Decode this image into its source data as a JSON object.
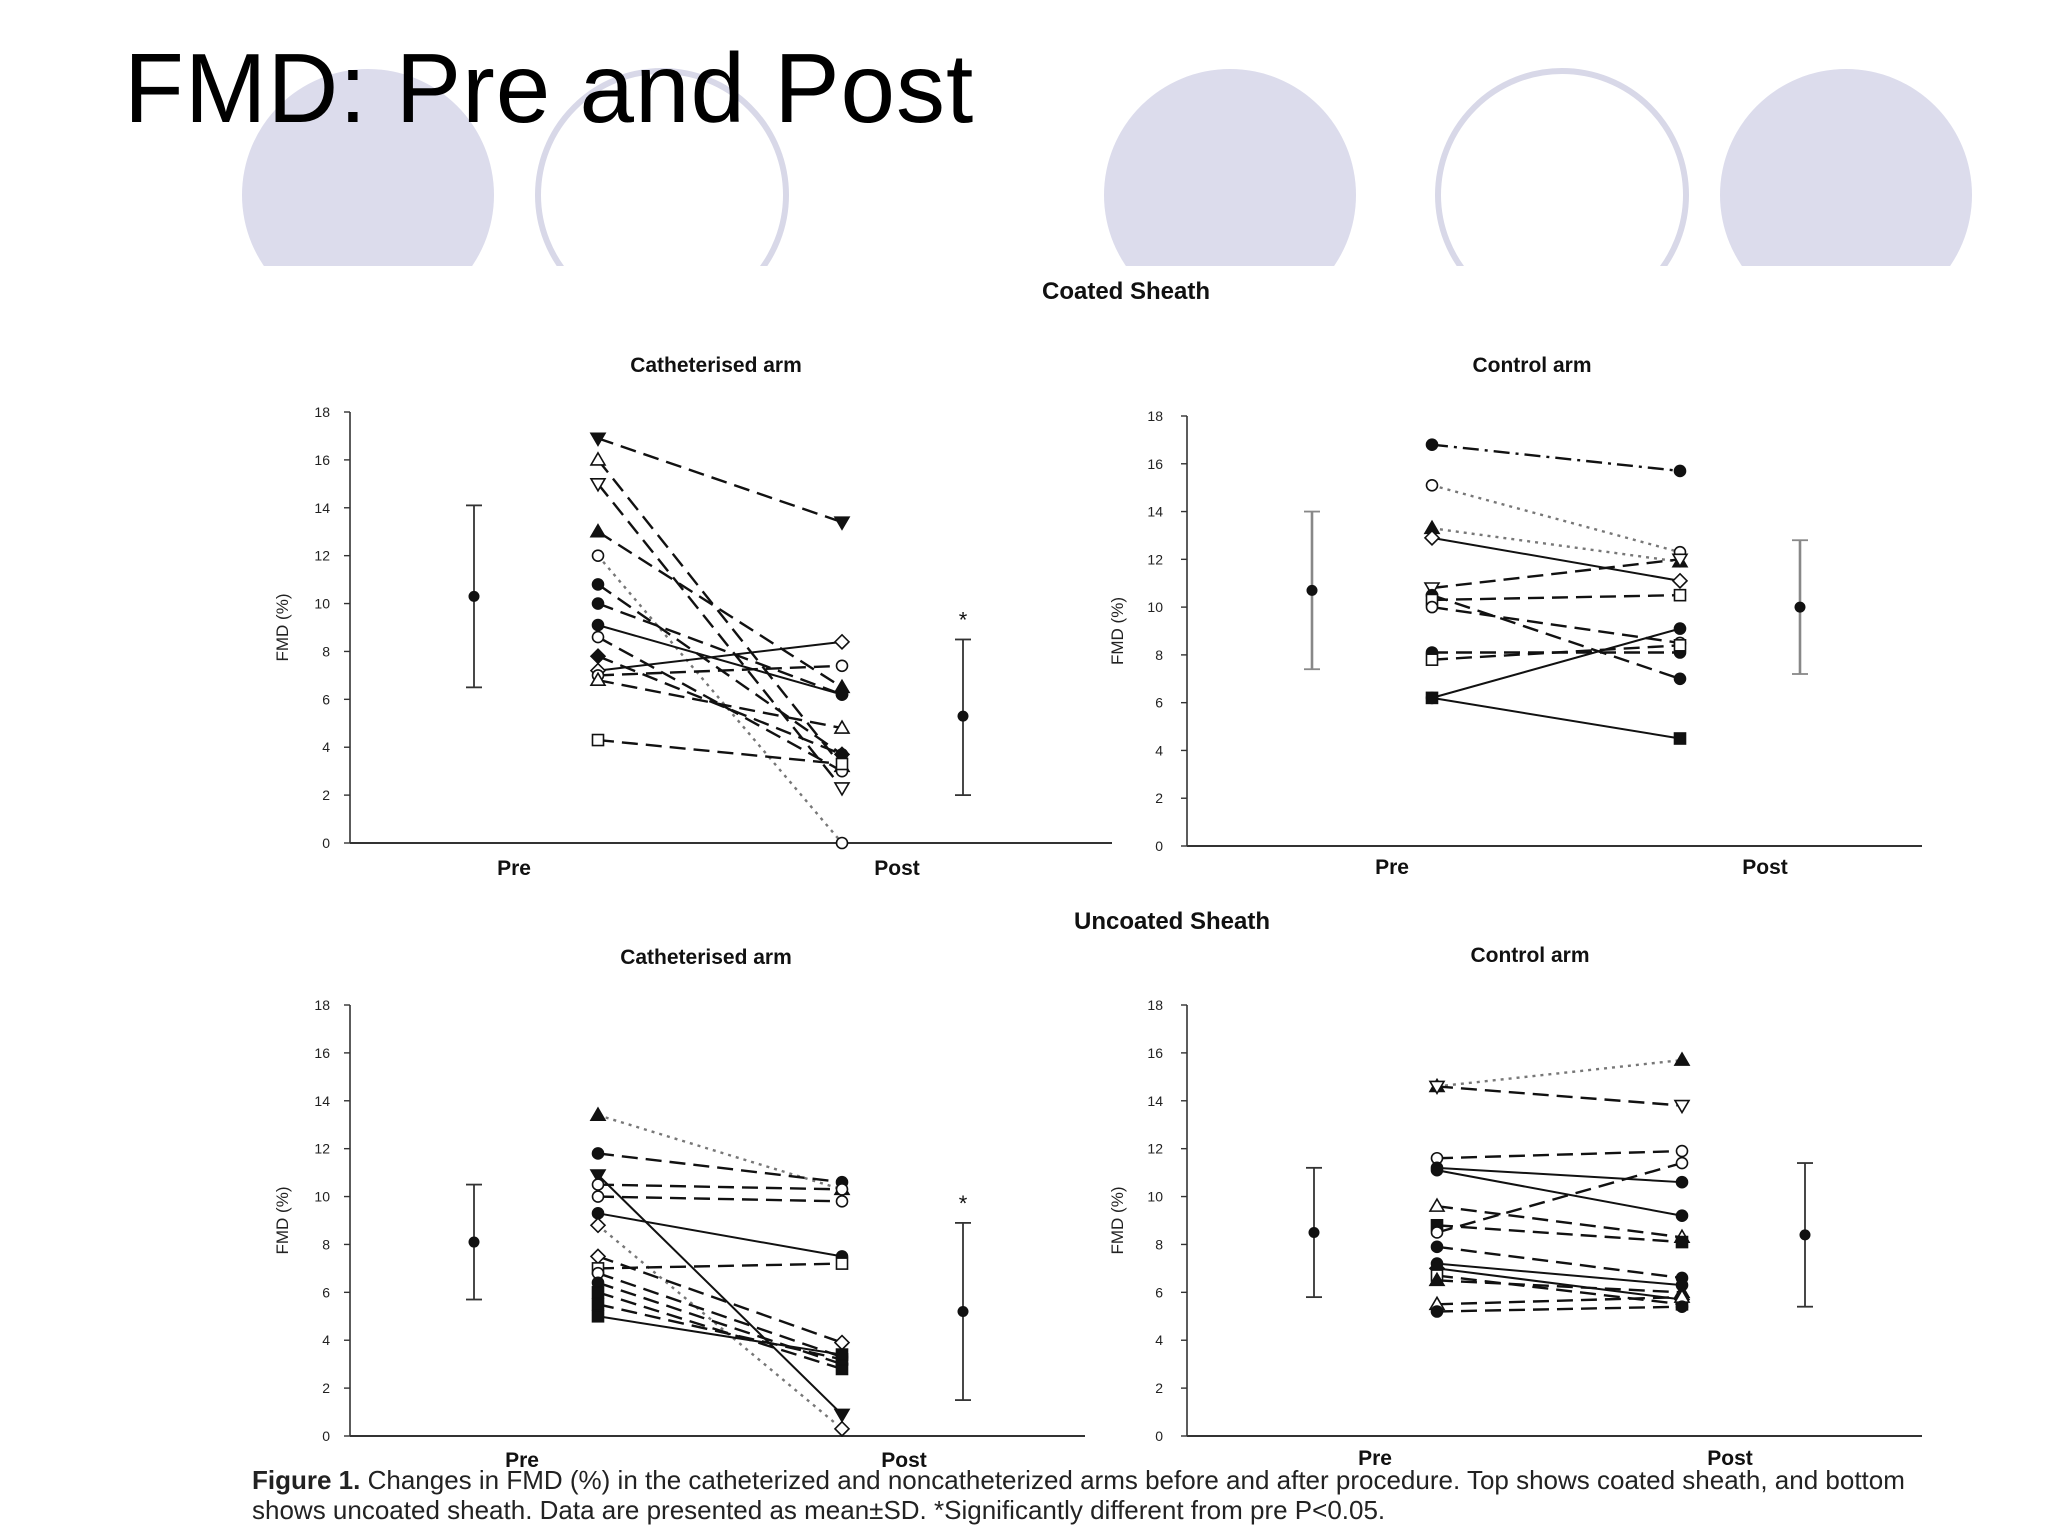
{
  "slide": {
    "title": "FMD: Pre and Post"
  },
  "colors": {
    "decor_fill": "#dcdcec",
    "decor_ring": "#d8d8e8",
    "ink": "#111111",
    "grey_bar": "#888888"
  },
  "sections": {
    "coated": "Coated Sheath",
    "uncoated": "Uncoated Sheath"
  },
  "caption": {
    "label": "Figure 1.",
    "text": "Changes in FMD (%) in the catheterized and noncatheterized arms before and after procedure. Top shows coated sheath, and bottom shows uncoated sheath. Data are presented as mean±SD. *Significantly different from pre P<0.05."
  },
  "chart_data": [
    {
      "type": "line",
      "section": "Coated Sheath",
      "title": "Catheterised arm",
      "xlabel": "",
      "ylabel": "FMD (%)",
      "categories": [
        "Pre",
        "Post"
      ],
      "ylim": [
        0,
        18
      ],
      "yticks": [
        0,
        2,
        4,
        6,
        8,
        10,
        12,
        14,
        16,
        18
      ],
      "significance_mark": "*",
      "mean_sd": [
        {
          "label": "Pre",
          "mean": 10.3,
          "low": 6.5,
          "high": 14.1
        },
        {
          "label": "Post",
          "mean": 5.3,
          "low": 2.0,
          "high": 8.5
        }
      ],
      "subjects": [
        {
          "pre": 16.9,
          "post": 13.4,
          "marker": "tri-down-filled",
          "dash": "dashed"
        },
        {
          "pre": 16.0,
          "post": 3.2,
          "marker": "tri-up-open",
          "dash": "dashed"
        },
        {
          "pre": 15.0,
          "post": 2.3,
          "marker": "tri-down-open",
          "dash": "dashed"
        },
        {
          "pre": 13.0,
          "post": 6.5,
          "marker": "tri-up-filled",
          "dash": "dashed"
        },
        {
          "pre": 12.0,
          "post": 0.0,
          "marker": "circle-open",
          "dash": "dotted"
        },
        {
          "pre": 10.8,
          "post": 3.7,
          "marker": "circle-filled",
          "dash": "dashed"
        },
        {
          "pre": 10.0,
          "post": 6.2,
          "marker": "circle-filled",
          "dash": "dashed"
        },
        {
          "pre": 9.1,
          "post": 6.2,
          "marker": "circle-filled",
          "dash": "solid"
        },
        {
          "pre": 8.6,
          "post": 3.0,
          "marker": "circle-open",
          "dash": "dashed"
        },
        {
          "pre": 7.8,
          "post": 3.7,
          "marker": "diamond-filled",
          "dash": "dashed"
        },
        {
          "pre": 7.2,
          "post": 8.4,
          "marker": "diamond-open",
          "dash": "solid"
        },
        {
          "pre": 7.0,
          "post": 7.4,
          "marker": "circle-open",
          "dash": "dashed"
        },
        {
          "pre": 6.8,
          "post": 4.8,
          "marker": "tri-up-open",
          "dash": "dashed"
        },
        {
          "pre": 4.3,
          "post": 3.3,
          "marker": "square-open",
          "dash": "dashed"
        }
      ]
    },
    {
      "type": "line",
      "section": "Coated Sheath",
      "title": "Control arm",
      "xlabel": "",
      "ylabel": "FMD (%)",
      "categories": [
        "Pre",
        "Post"
      ],
      "ylim": [
        0,
        18
      ],
      "yticks": [
        0,
        2,
        4,
        6,
        8,
        10,
        12,
        14,
        16,
        18
      ],
      "significance_mark": "",
      "mean_sd": [
        {
          "label": "Pre",
          "mean": 10.7,
          "low": 7.4,
          "high": 14.0
        },
        {
          "label": "Post",
          "mean": 10.0,
          "low": 7.2,
          "high": 12.8
        }
      ],
      "subjects": [
        {
          "pre": 16.8,
          "post": 15.7,
          "marker": "circle-filled",
          "dash": "dashdot"
        },
        {
          "pre": 15.1,
          "post": 12.3,
          "marker": "circle-open",
          "dash": "dotted"
        },
        {
          "pre": 13.3,
          "post": 11.9,
          "marker": "tri-up-filled",
          "dash": "dotted"
        },
        {
          "pre": 12.9,
          "post": 11.1,
          "marker": "diamond-open",
          "dash": "solid"
        },
        {
          "pre": 10.8,
          "post": 12.0,
          "marker": "tri-down-open",
          "dash": "dashed"
        },
        {
          "pre": 10.5,
          "post": 7.0,
          "marker": "circle-filled",
          "dash": "dashed"
        },
        {
          "pre": 10.3,
          "post": 10.5,
          "marker": "square-open",
          "dash": "dashed"
        },
        {
          "pre": 10.0,
          "post": 8.5,
          "marker": "circle-open",
          "dash": "dashed"
        },
        {
          "pre": 8.1,
          "post": 8.1,
          "marker": "circle-filled",
          "dash": "dashed"
        },
        {
          "pre": 7.8,
          "post": 8.4,
          "marker": "square-open",
          "dash": "dashed"
        },
        {
          "pre": 6.2,
          "post": 9.1,
          "marker": "circle-filled",
          "dash": "solid"
        },
        {
          "pre": 6.2,
          "post": 4.5,
          "marker": "square-filled",
          "dash": "solid"
        }
      ]
    },
    {
      "type": "line",
      "section": "Uncoated Sheath",
      "title": "Catheterised arm",
      "xlabel": "",
      "ylabel": "FMD (%)",
      "categories": [
        "Pre",
        "Post"
      ],
      "ylim": [
        0,
        18
      ],
      "yticks": [
        0,
        2,
        4,
        6,
        8,
        10,
        12,
        14,
        16,
        18
      ],
      "significance_mark": "*",
      "mean_sd": [
        {
          "label": "Pre",
          "mean": 8.1,
          "low": 5.7,
          "high": 10.5
        },
        {
          "label": "Post",
          "mean": 5.2,
          "low": 1.5,
          "high": 8.9
        }
      ],
      "subjects": [
        {
          "pre": 13.4,
          "post": 10.3,
          "marker": "tri-up-filled",
          "dash": "dotted"
        },
        {
          "pre": 11.8,
          "post": 10.6,
          "marker": "circle-filled",
          "dash": "dashed"
        },
        {
          "pre": 10.9,
          "post": 0.9,
          "marker": "tri-down-filled",
          "dash": "solid"
        },
        {
          "pre": 10.5,
          "post": 10.3,
          "marker": "circle-open",
          "dash": "dashed"
        },
        {
          "pre": 10.0,
          "post": 9.8,
          "marker": "circle-open",
          "dash": "dashed"
        },
        {
          "pre": 9.3,
          "post": 7.5,
          "marker": "circle-filled",
          "dash": "solid"
        },
        {
          "pre": 8.8,
          "post": 0.3,
          "marker": "diamond-open",
          "dash": "dotted"
        },
        {
          "pre": 7.5,
          "post": 3.9,
          "marker": "diamond-open",
          "dash": "dashed"
        },
        {
          "pre": 7.0,
          "post": 7.2,
          "marker": "square-open",
          "dash": "dashed"
        },
        {
          "pre": 6.8,
          "post": 3.3,
          "marker": "circle-open",
          "dash": "dashed"
        },
        {
          "pre": 6.4,
          "post": 3.0,
          "marker": "circle-filled",
          "dash": "dashed"
        },
        {
          "pre": 6.0,
          "post": 2.8,
          "marker": "square-filled",
          "dash": "dashed"
        },
        {
          "pre": 5.5,
          "post": 3.2,
          "marker": "square-filled",
          "dash": "dashed"
        },
        {
          "pre": 5.0,
          "post": 3.4,
          "marker": "square-filled",
          "dash": "solid"
        }
      ]
    },
    {
      "type": "line",
      "section": "Uncoated Sheath",
      "title": "Control arm",
      "xlabel": "",
      "ylabel": "FMD (%)",
      "categories": [
        "Pre",
        "Post"
      ],
      "ylim": [
        0,
        18
      ],
      "yticks": [
        0,
        2,
        4,
        6,
        8,
        10,
        12,
        14,
        16,
        18
      ],
      "significance_mark": "",
      "mean_sd": [
        {
          "label": "Pre",
          "mean": 8.5,
          "low": 5.8,
          "high": 11.2
        },
        {
          "label": "Post",
          "mean": 8.4,
          "low": 5.4,
          "high": 11.4
        }
      ],
      "subjects": [
        {
          "pre": 14.6,
          "post": 15.7,
          "marker": "tri-up-filled",
          "dash": "dotted"
        },
        {
          "pre": 14.6,
          "post": 13.8,
          "marker": "tri-down-open",
          "dash": "dashed"
        },
        {
          "pre": 11.6,
          "post": 11.9,
          "marker": "circle-open",
          "dash": "dashed"
        },
        {
          "pre": 11.2,
          "post": 10.6,
          "marker": "circle-filled",
          "dash": "solid"
        },
        {
          "pre": 11.1,
          "post": 9.2,
          "marker": "circle-filled",
          "dash": "solid"
        },
        {
          "pre": 9.6,
          "post": 8.3,
          "marker": "tri-up-open",
          "dash": "dashed"
        },
        {
          "pre": 8.8,
          "post": 8.1,
          "marker": "square-filled",
          "dash": "dashed"
        },
        {
          "pre": 8.5,
          "post": 11.4,
          "marker": "circle-open",
          "dash": "dashed"
        },
        {
          "pre": 7.9,
          "post": 6.6,
          "marker": "circle-filled",
          "dash": "dashed"
        },
        {
          "pre": 7.2,
          "post": 6.3,
          "marker": "circle-filled",
          "dash": "solid"
        },
        {
          "pre": 7.0,
          "post": 5.7,
          "marker": "diamond-filled",
          "dash": "solid"
        },
        {
          "pre": 6.7,
          "post": 5.5,
          "marker": "square-open",
          "dash": "dashed"
        },
        {
          "pre": 6.5,
          "post": 6.0,
          "marker": "tri-up-filled",
          "dash": "dashed"
        },
        {
          "pre": 5.5,
          "post": 5.8,
          "marker": "tri-up-open",
          "dash": "dashed"
        },
        {
          "pre": 5.2,
          "post": 5.4,
          "marker": "circle-filled",
          "dash": "dashed"
        }
      ]
    }
  ]
}
